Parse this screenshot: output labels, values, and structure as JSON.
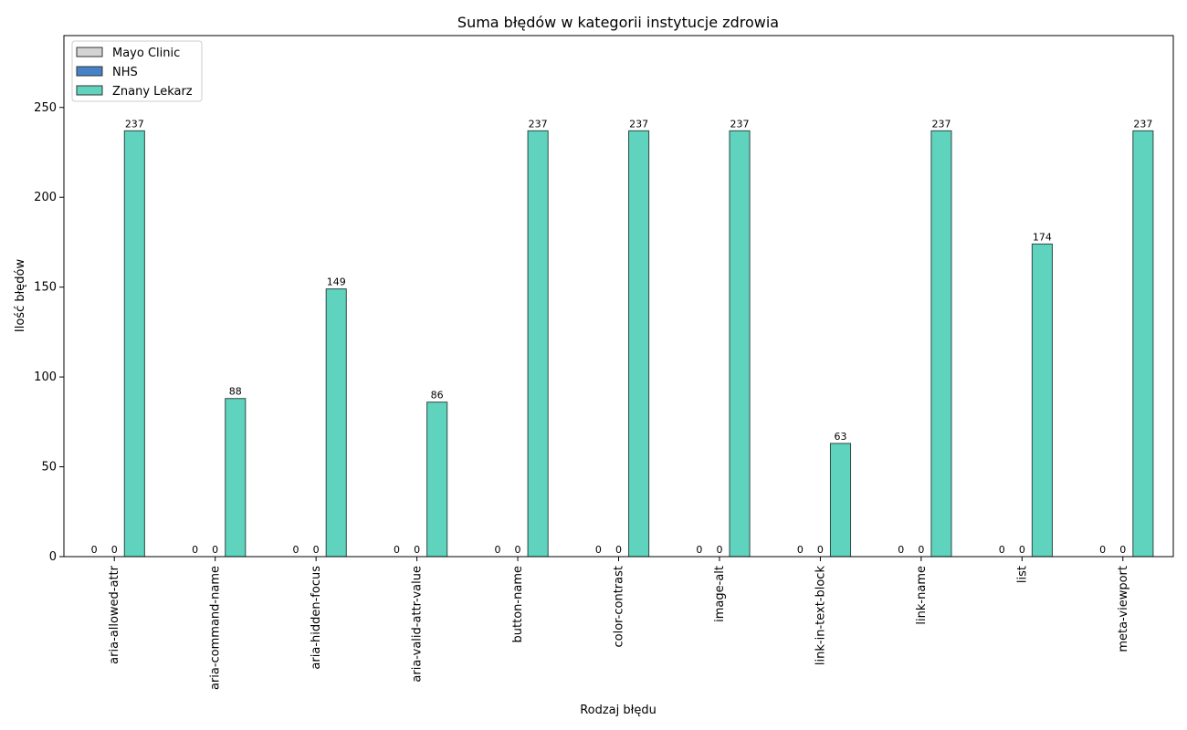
{
  "chart_data": {
    "type": "bar",
    "title": "Suma błędów w kategorii instytucje zdrowia",
    "xlabel": "Rodzaj błędu",
    "ylabel": "Ilość błędów",
    "categories": [
      "aria-allowed-attr",
      "aria-command-name",
      "aria-hidden-focus",
      "aria-valid-attr-value",
      "button-name",
      "color-contrast",
      "image-alt",
      "link-in-text-block",
      "link-name",
      "list",
      "meta-viewport"
    ],
    "series": [
      {
        "name": "Mayo Clinic",
        "color": "#d3d3d3",
        "values": [
          0,
          0,
          0,
          0,
          0,
          0,
          0,
          0,
          0,
          0,
          0
        ]
      },
      {
        "name": "NHS",
        "color": "#4682c8",
        "values": [
          0,
          0,
          0,
          0,
          0,
          0,
          0,
          0,
          0,
          0,
          0
        ]
      },
      {
        "name": "Znany Lekarz",
        "color": "#5fd3bd",
        "values": [
          237,
          88,
          149,
          86,
          237,
          237,
          237,
          63,
          237,
          174,
          237
        ]
      }
    ],
    "ylim": [
      0,
      290
    ],
    "yticks": [
      0,
      50,
      100,
      150,
      200,
      250
    ],
    "legend_position": "top-left",
    "grid": false
  }
}
